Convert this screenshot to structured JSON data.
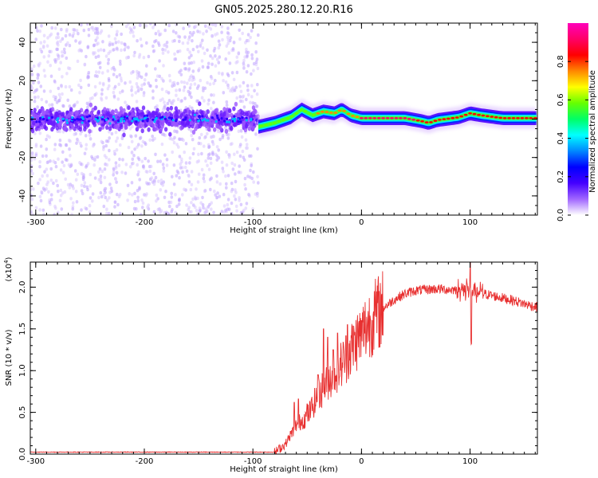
{
  "title": "GN05.2025.280.12.20.R16",
  "chart_data": [
    {
      "type": "heatmap",
      "title": "GN05.2025.280.12.20.R16",
      "xlabel": "Height of straight line (km)",
      "ylabel": "Frequency (Hz)",
      "xlim": [
        -305,
        162
      ],
      "ylim": [
        -50,
        50
      ],
      "xticks": [
        -300,
        -200,
        -100,
        0,
        100
      ],
      "xtick_labels": [
        "-300",
        "-200",
        "-100",
        "0",
        "100"
      ],
      "yticks": [
        -40,
        -20,
        0,
        20,
        40
      ],
      "ytick_labels": [
        "-40",
        "-20",
        "0",
        "20",
        "40"
      ],
      "colorbar": {
        "label": "Normalized spectral amplitude",
        "range": [
          0,
          1
        ],
        "ticks": [
          0.0,
          0.2,
          0.4,
          0.6,
          0.8
        ],
        "tick_labels": [
          "0.0",
          "0.2",
          "0.4",
          "0.6",
          "0.8"
        ],
        "colormap": [
          "#ffffff",
          "#a066ff",
          "#4400ff",
          "#0000ff",
          "#0088ff",
          "#00ffff",
          "#00ff66",
          "#66ff00",
          "#ffff00",
          "#ff8800",
          "#ff0000",
          "#ff0066",
          "#ff00bb"
        ]
      },
      "ridge": {
        "height_km": [
          -95,
          -80,
          -65,
          -55,
          -45,
          -35,
          -25,
          -18,
          -10,
          0,
          20,
          40,
          55,
          62,
          70,
          90,
          100,
          110,
          130,
          162
        ],
        "frequency_hz": [
          -4,
          -2,
          1,
          5,
          2,
          4,
          3,
          5,
          2,
          0.5,
          0.5,
          0.5,
          -1,
          -2,
          -0.5,
          1,
          3,
          2,
          0.5,
          0.5
        ]
      },
      "noise_region_km": [
        -305,
        -95
      ]
    },
    {
      "type": "line",
      "xlabel": "Height of straight line (km)",
      "ylabel": "SNR (10 * v/v)",
      "y_multiplier": "(x10^4)",
      "y_multiplier_base": "(x10",
      "y_multiplier_exp": "4",
      "y_multiplier_close": ")",
      "xlim": [
        -305,
        162
      ],
      "ylim": [
        0,
        2.3
      ],
      "xticks": [
        -300,
        -200,
        -100,
        0,
        100
      ],
      "xtick_labels": [
        "-300",
        "-200",
        "-100",
        "0",
        "100"
      ],
      "yticks": [
        0.0,
        0.5,
        1.0,
        1.5,
        2.0
      ],
      "ytick_labels": [
        "0.0",
        "0.5",
        "1.0",
        "1.5",
        "2.0"
      ],
      "color": "#e83030",
      "envelope": {
        "x": [
          -305,
          -80,
          -70,
          -60,
          -50,
          -40,
          -30,
          -20,
          -10,
          0,
          10,
          20,
          30,
          40,
          50,
          60,
          70,
          80,
          90,
          100,
          110,
          120,
          130,
          140,
          150,
          162
        ],
        "y": [
          0.02,
          0.02,
          0.12,
          0.35,
          0.45,
          0.7,
          0.9,
          1.05,
          1.25,
          1.45,
          1.62,
          1.75,
          1.85,
          1.92,
          1.96,
          1.97,
          1.98,
          1.97,
          1.97,
          1.96,
          1.93,
          1.9,
          1.87,
          1.84,
          1.8,
          1.76
        ]
      },
      "spikes": [
        {
          "x": -62,
          "y": 0.62
        },
        {
          "x": -58,
          "y": 0.66
        },
        {
          "x": -50,
          "y": 0.6
        },
        {
          "x": -40,
          "y": 0.95
        },
        {
          "x": -35,
          "y": 1.5
        },
        {
          "x": -31,
          "y": 1.4
        },
        {
          "x": -26,
          "y": 1.25
        },
        {
          "x": -22,
          "y": 1.45
        },
        {
          "x": -13,
          "y": 1.55
        },
        {
          "x": 0,
          "y": 1.6
        },
        {
          "x": 97,
          "y": 2.05
        },
        {
          "x": 100,
          "y": 2.25
        },
        {
          "x": 101,
          "y": 1.35
        }
      ]
    }
  ]
}
